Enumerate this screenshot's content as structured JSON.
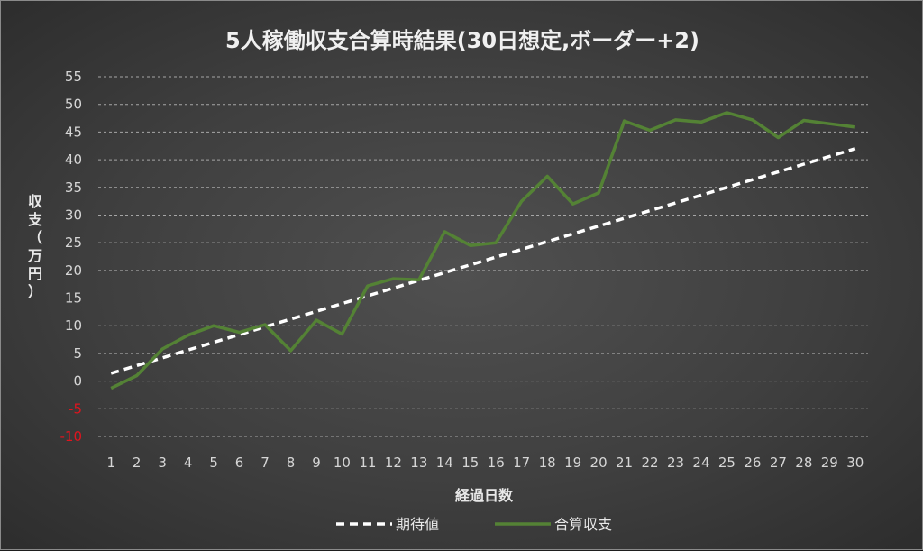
{
  "chart_data": {
    "type": "line",
    "title": "5人稼働収支合算時結果(30日想定,ボーダー+2)",
    "xlabel": "経過日数",
    "ylabel": "収支（万円）",
    "ylim": [
      -10,
      55
    ],
    "yticks": [
      -10,
      -5,
      0,
      5,
      10,
      15,
      20,
      25,
      30,
      35,
      40,
      45,
      50,
      55
    ],
    "x": [
      1,
      2,
      3,
      4,
      5,
      6,
      7,
      8,
      9,
      10,
      11,
      12,
      13,
      14,
      15,
      16,
      17,
      18,
      19,
      20,
      21,
      22,
      23,
      24,
      25,
      26,
      27,
      28,
      29,
      30
    ],
    "grid": true,
    "legend_position": "bottom",
    "series": [
      {
        "name": "期待値",
        "color": "#ffffff",
        "style": "dashed",
        "values": [
          1.4,
          2.8,
          4.2,
          5.6,
          7.0,
          8.4,
          9.8,
          11.2,
          12.6,
          14.0,
          15.4,
          16.8,
          18.2,
          19.6,
          21.0,
          22.4,
          23.8,
          25.2,
          26.6,
          28.0,
          29.4,
          30.8,
          32.2,
          33.6,
          35.0,
          36.4,
          37.8,
          39.2,
          40.6,
          42.0
        ]
      },
      {
        "name": "合算収支",
        "color": "#548235",
        "style": "solid",
        "values": [
          -1.3,
          1.0,
          5.8,
          8.3,
          10.0,
          8.8,
          10.2,
          5.5,
          11.0,
          8.5,
          17.2,
          18.5,
          18.3,
          27.0,
          24.5,
          25.0,
          32.5,
          37.0,
          32.0,
          34.0,
          47.0,
          45.3,
          47.2,
          46.8,
          48.5,
          47.2,
          44.0,
          47.1,
          46.5,
          45.9
        ]
      }
    ]
  }
}
